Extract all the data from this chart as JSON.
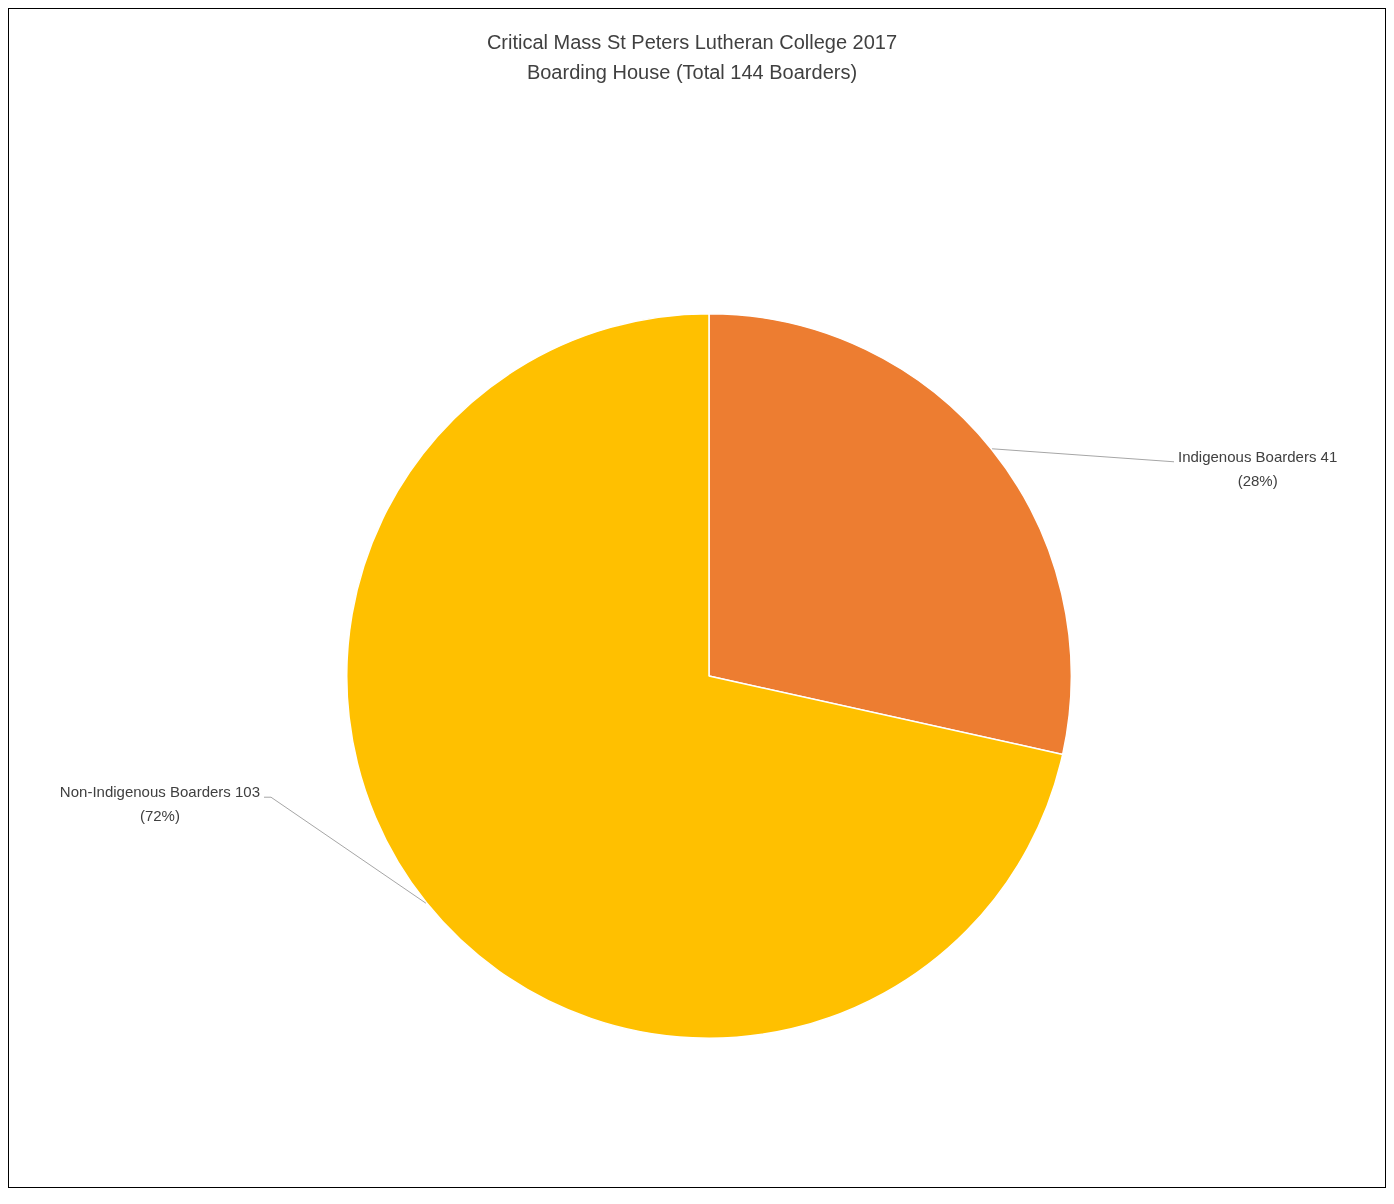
{
  "chart_data": {
    "type": "pie",
    "title": "Critical Mass St Peters Lutheran College 2017\nBoarding House (Total 144 Boarders)",
    "categories": [
      "Indigenous Boarders",
      "Non-Indigenous Boarders"
    ],
    "values": [
      41,
      103
    ],
    "colors": [
      "#ed7d31",
      "#ffc000"
    ],
    "value_labels": [
      "41\n(28%)",
      "103\n(72%)"
    ],
    "legend": false
  }
}
